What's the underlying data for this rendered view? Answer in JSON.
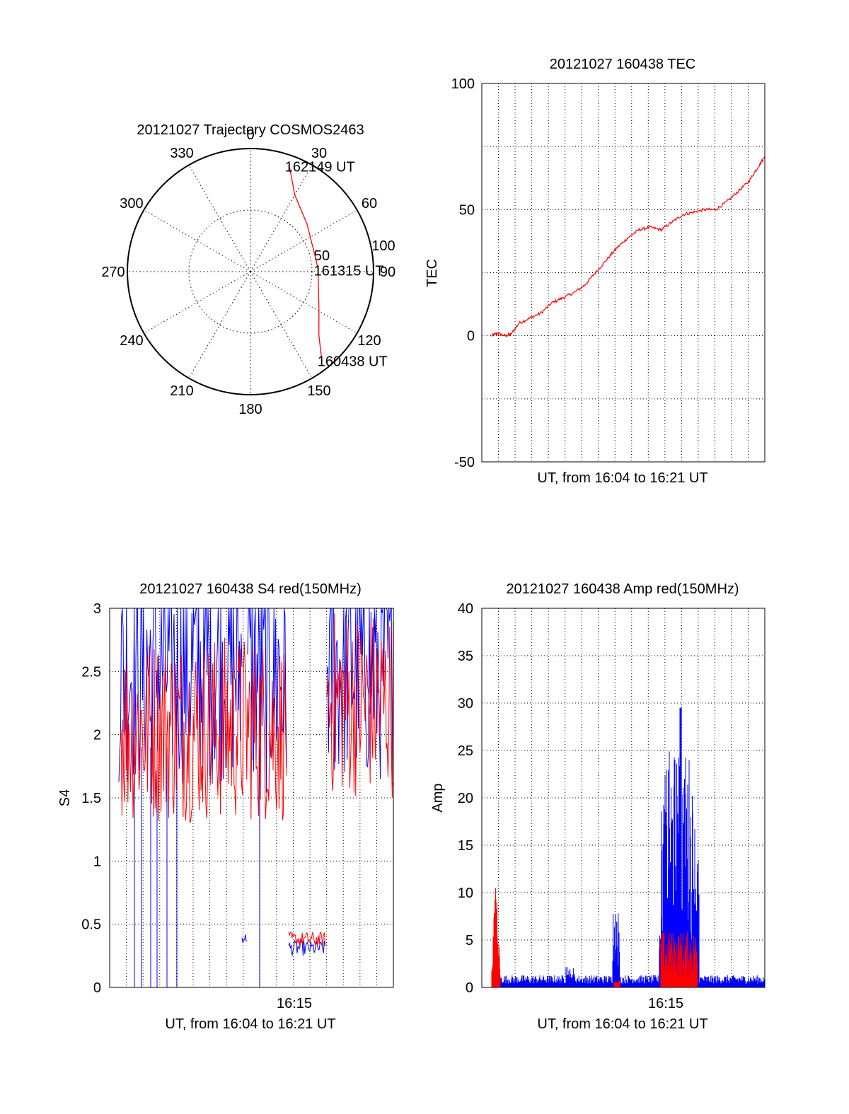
{
  "colors": {
    "red": "#ff0000",
    "blue": "#0000ff",
    "axis": "#000000",
    "grid": "#000000"
  },
  "chart_data": [
    {
      "id": "trajectory",
      "type": "polar",
      "title": "20121027 Trajectory COSMOS2463",
      "azimuth_labels": [
        "0",
        "30",
        "60",
        "90",
        "120",
        "150",
        "180",
        "210",
        "240",
        "270",
        "300",
        "330"
      ],
      "radial_labels": [
        "50",
        "100"
      ],
      "radial_max": 100,
      "grid": true,
      "annotations": [
        {
          "text": "162149 UT",
          "az": 20,
          "r": 92
        },
        {
          "text": "161315 UT",
          "az": 88,
          "r": 55
        },
        {
          "text": "160438 UT",
          "az": 141,
          "r": 92
        }
      ],
      "series": [
        {
          "color": "red",
          "points": [
            [
              20,
              92
            ],
            [
              30,
              72
            ],
            [
              50,
              60
            ],
            [
              75,
              54
            ],
            [
              88,
              55
            ],
            [
              100,
              56
            ],
            [
              118,
              63
            ],
            [
              133,
              76
            ],
            [
              141,
              92
            ]
          ]
        }
      ]
    },
    {
      "id": "tec",
      "type": "line",
      "title": "20121027 160438 TEC",
      "ylabel": "TEC",
      "xlabel": "UT, from 16:04 to 16:21 UT",
      "ylim": [
        -50,
        100
      ],
      "yticks": [
        "100",
        "50",
        "0",
        "-50"
      ],
      "grid": true,
      "series": [
        {
          "color": "red",
          "x": [
            0.0,
            0.02,
            0.05,
            0.07,
            0.1,
            0.14,
            0.18,
            0.22,
            0.26,
            0.3,
            0.34,
            0.38,
            0.42,
            0.46,
            0.5,
            0.54,
            0.58,
            0.62,
            0.66,
            0.7,
            0.74,
            0.78,
            0.82,
            0.86,
            0.9,
            0.94,
            0.97,
            1.0
          ],
          "y": [
            0,
            1,
            0,
            0.5,
            5,
            7,
            9,
            13,
            15,
            17,
            20,
            25,
            30,
            35,
            39,
            42,
            43,
            42,
            45,
            48,
            49,
            50,
            50,
            53,
            57,
            61,
            66,
            71
          ]
        }
      ]
    },
    {
      "id": "s4",
      "type": "line",
      "title": "20121027 160438 S4 red(150MHz)",
      "ylabel": "S4",
      "xlabel": "UT, from 16:04 to 16:21 UT",
      "ylim": [
        0,
        3
      ],
      "yticks": [
        "3",
        "2.5",
        "2",
        "1.5",
        "1",
        "0.5",
        "0"
      ],
      "xtick_label": "16:15",
      "grid": true,
      "series": [
        {
          "name": "",
          "color": "blue"
        },
        {
          "name": "",
          "color": "red"
        }
      ]
    },
    {
      "id": "amp",
      "type": "line",
      "title": "20121027 160438 Amp red(150MHz)",
      "ylabel": "Amp",
      "xlabel": "UT, from 16:04 to 16:21 UT",
      "ylim": [
        0,
        40
      ],
      "yticks": [
        "40",
        "35",
        "30",
        "25",
        "20",
        "15",
        "10",
        "5",
        "0"
      ],
      "xtick_label": "16:15",
      "grid": true,
      "series": [
        {
          "name": "",
          "color": "blue"
        },
        {
          "name": "",
          "color": "red"
        }
      ]
    }
  ]
}
